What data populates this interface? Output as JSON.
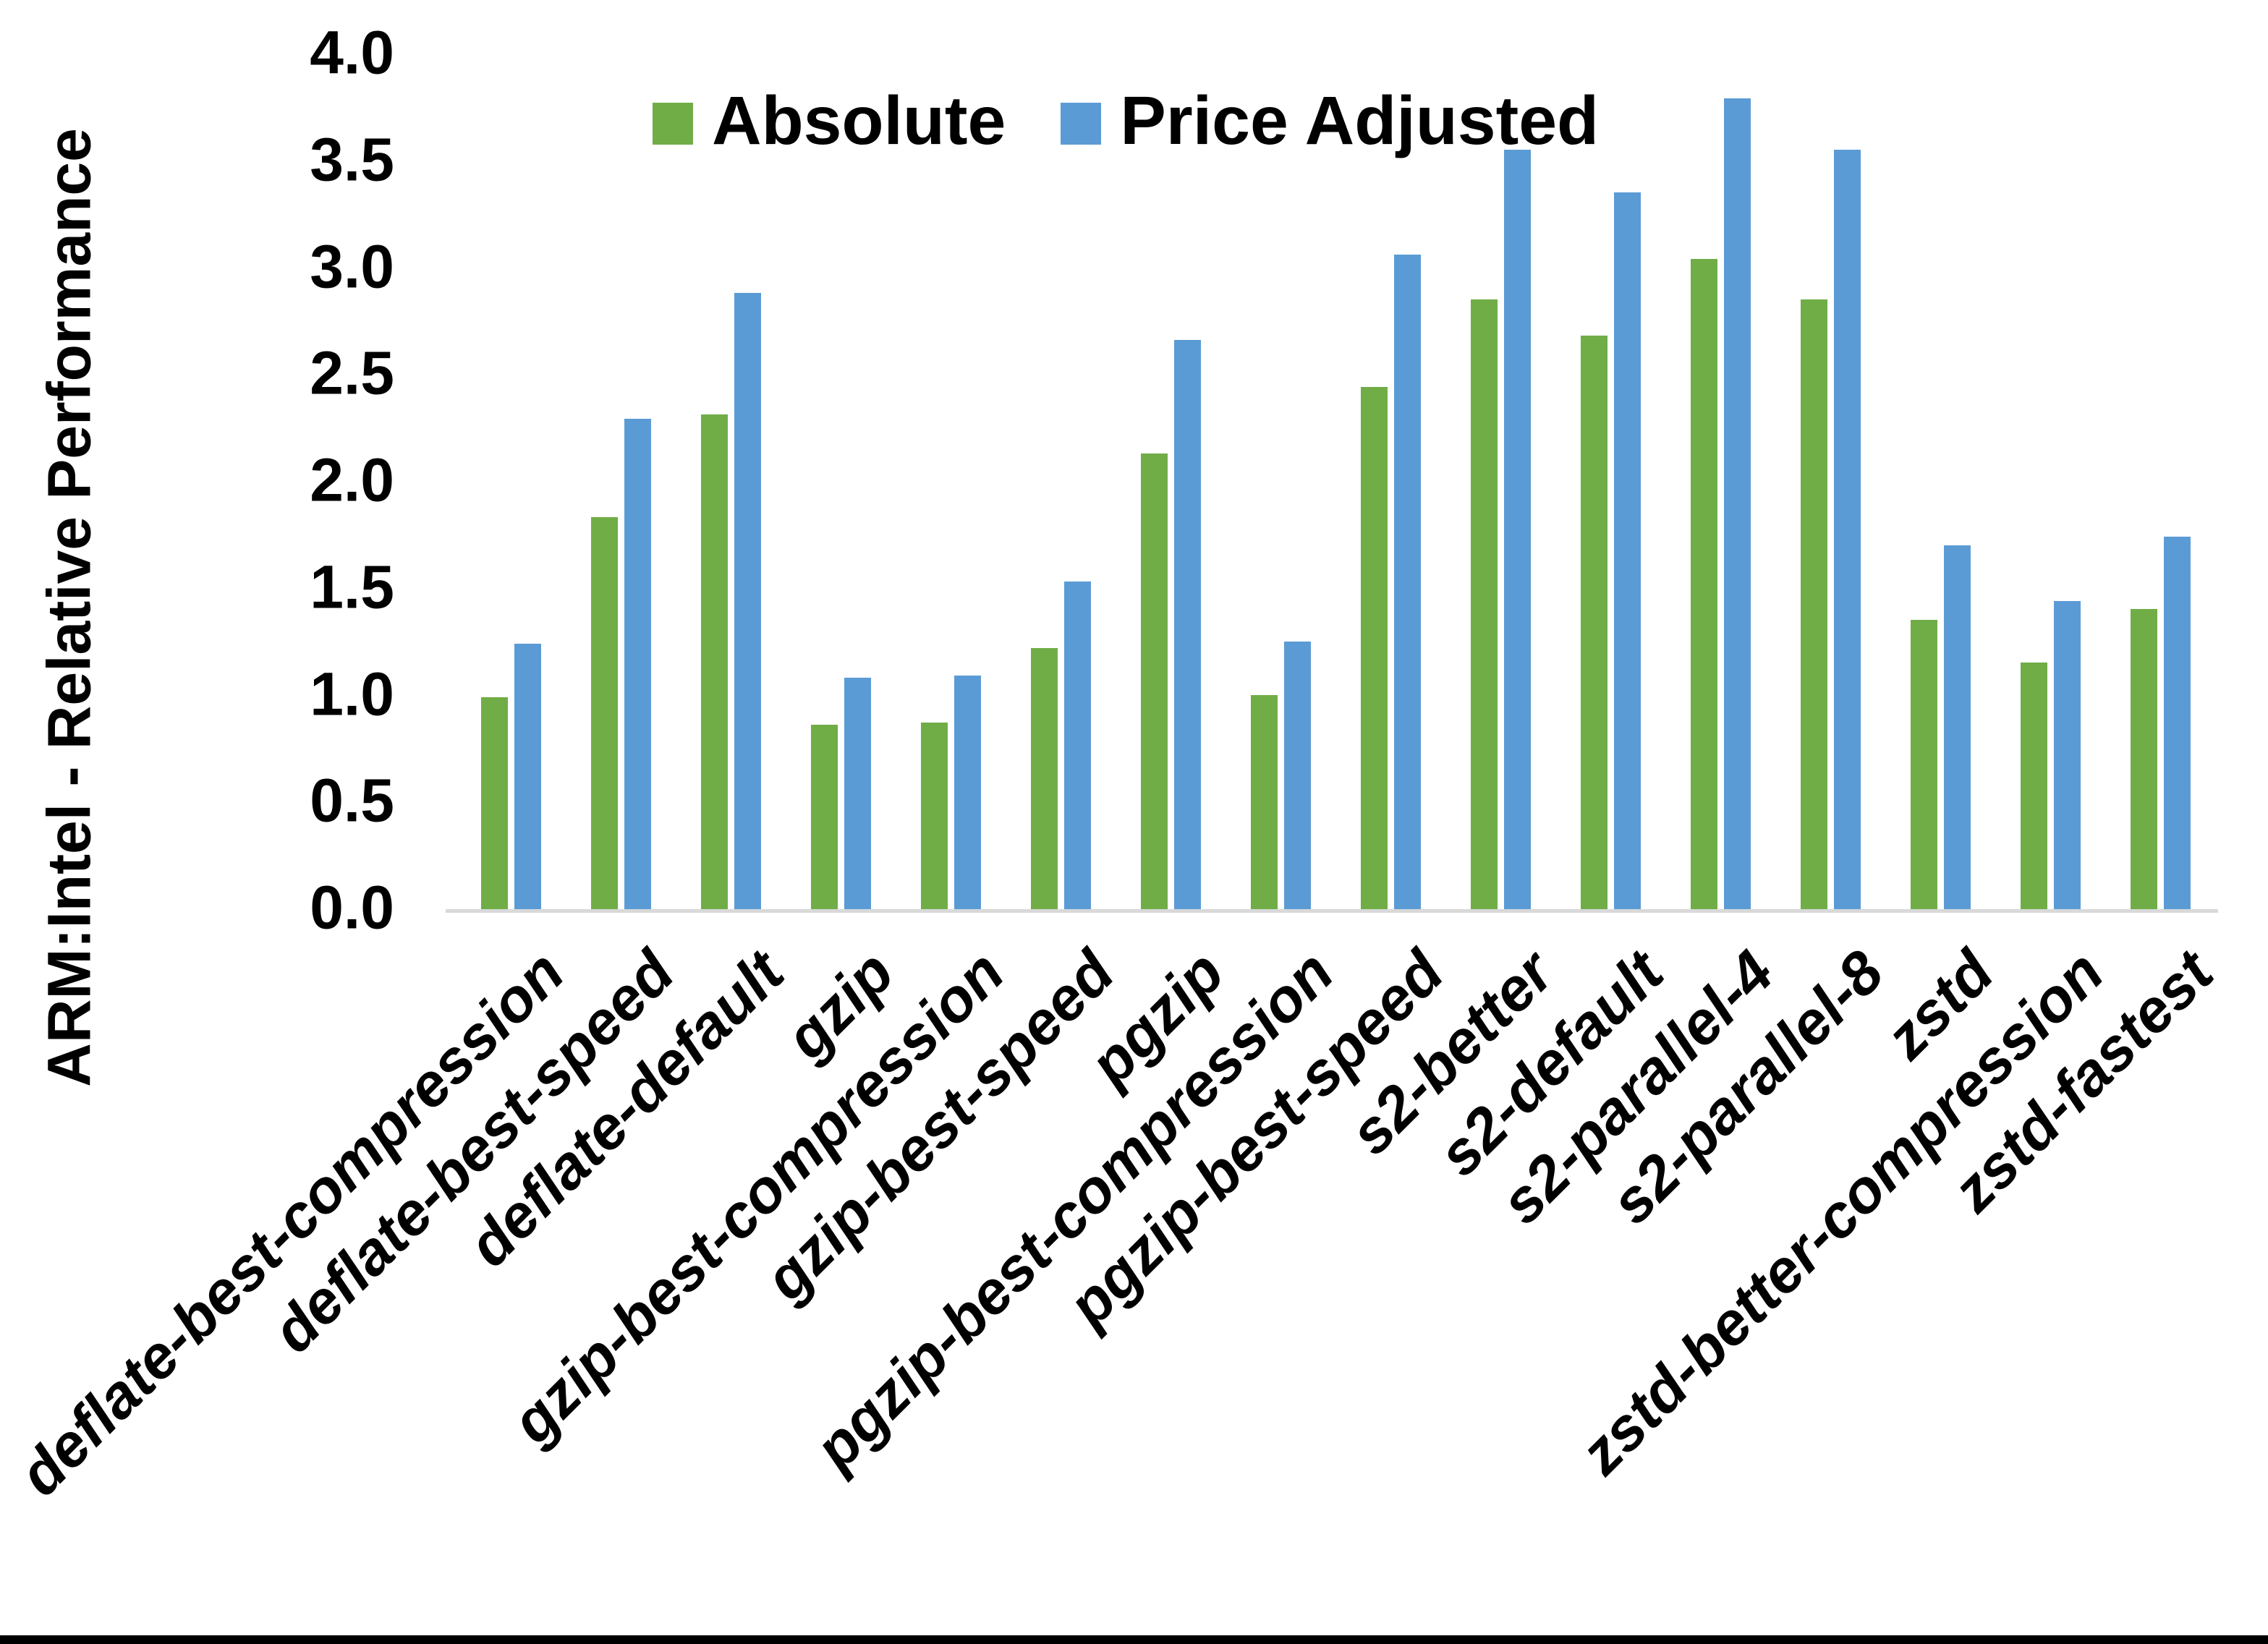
{
  "y_axis": {
    "title": "ARM:Intel - Relative Performance",
    "ticks": [
      "4.0",
      "3.5",
      "3.0",
      "2.5",
      "2.0",
      "1.5",
      "1.0",
      "0.5",
      "0.0"
    ]
  },
  "legend": {
    "items": [
      {
        "label": "Absolute",
        "color": "#70AD47"
      },
      {
        "label": "Price Adjusted",
        "color": "#5B9BD5"
      }
    ]
  },
  "chart_data": {
    "type": "bar",
    "title": "",
    "xlabel": "",
    "ylabel": "ARM:Intel - Relative Performance",
    "ylim": [
      0,
      4
    ],
    "ytick_step": 0.5,
    "grid": false,
    "legend_position": "top-center",
    "axis_line_color": "#d9d9d9",
    "categories": [
      "deflate-best-compression",
      "deflate-best-speed",
      "deflate-default",
      "gzip",
      "gzip-best-compression",
      "gzip-best-speed",
      "pgzip",
      "pgzip-best-compression",
      "pgzip-best-speed",
      "s2-better",
      "s2-default",
      "s2-parallel-4",
      "s2-parallel-8",
      "zstd",
      "zstd-better-compression",
      "zstd-fastest"
    ],
    "series": [
      {
        "name": "Absolute",
        "color": "#70AD47",
        "values": [
          1.0,
          1.84,
          2.32,
          0.87,
          0.88,
          1.23,
          2.14,
          1.01,
          2.45,
          2.86,
          2.69,
          3.05,
          2.86,
          1.36,
          1.16,
          1.41
        ]
      },
      {
        "name": "Price Adjusted",
        "color": "#5B9BD5",
        "values": [
          1.25,
          2.3,
          2.89,
          1.09,
          1.1,
          1.54,
          2.67,
          1.26,
          3.07,
          3.56,
          3.36,
          3.8,
          3.56,
          1.71,
          1.45,
          1.75
        ]
      }
    ]
  }
}
